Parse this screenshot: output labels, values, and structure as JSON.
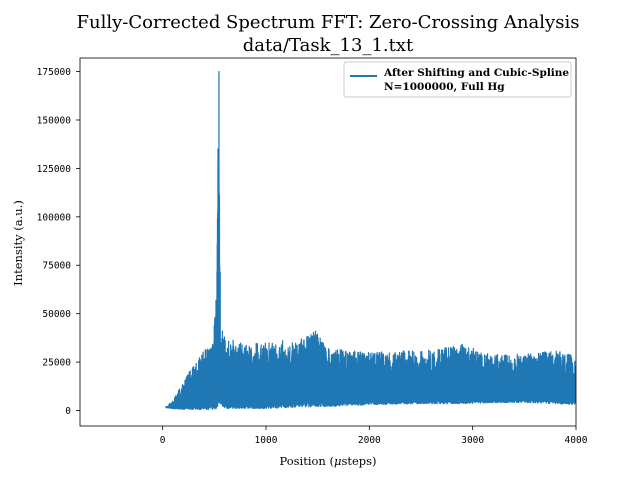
{
  "chart_data": {
    "type": "line",
    "title": "Fully-Corrected Spectrum FFT: Zero-Crossing Analysis",
    "subtitle": "data/Task_13_1.txt",
    "xlabel": "Position ($\\mu$steps)",
    "xlabel_parts": [
      "Position (",
      "μ",
      "steps)"
    ],
    "ylabel": "Intensity (a.u.)",
    "xlim": [
      -800,
      4000
    ],
    "ylim": [
      -8000,
      182000
    ],
    "xticks": [
      0,
      1000,
      2000,
      3000,
      4000
    ],
    "yticks": [
      0,
      25000,
      50000,
      75000,
      100000,
      125000,
      150000,
      175000
    ],
    "legend": {
      "placement": "top-right",
      "label_line1": "After Shifting and Cubic-Spline",
      "label_line2": "N=1000000, Full Hg"
    },
    "series": [
      {
        "name": "After Shifting and Cubic-Spline N=1000000, Full Hg",
        "color": "#1f77b4",
        "envelope": {
          "x": [
            30,
            100,
            200,
            300,
            400,
            480,
            520,
            545,
            560,
            600,
            700,
            800,
            1000,
            1200,
            1480,
            1600,
            1800,
            2000,
            2500,
            2900,
            3200,
            3500,
            3800,
            4000
          ],
          "upper": [
            2000,
            5000,
            15000,
            24000,
            31000,
            34000,
            60000,
            175000,
            45000,
            38000,
            36000,
            34000,
            35000,
            34000,
            41000,
            32000,
            31000,
            30000,
            31000,
            34000,
            29000,
            29000,
            31000,
            28000
          ],
          "lower": [
            1500,
            1000,
            500,
            500,
            500,
            500,
            1000,
            3000,
            2000,
            1000,
            1000,
            1000,
            1000,
            1500,
            2000,
            2000,
            2500,
            3000,
            3500,
            3500,
            4000,
            4000,
            3500,
            3000
          ]
        },
        "peaks": [
          {
            "x": 545,
            "y": 175000
          },
          {
            "x": 535,
            "y": 135000
          },
          {
            "x": 540,
            "y": 105000
          },
          {
            "x": 1480,
            "y": 41000
          },
          {
            "x": 1160,
            "y": 36000
          },
          {
            "x": 2900,
            "y": 34000
          }
        ]
      }
    ]
  }
}
